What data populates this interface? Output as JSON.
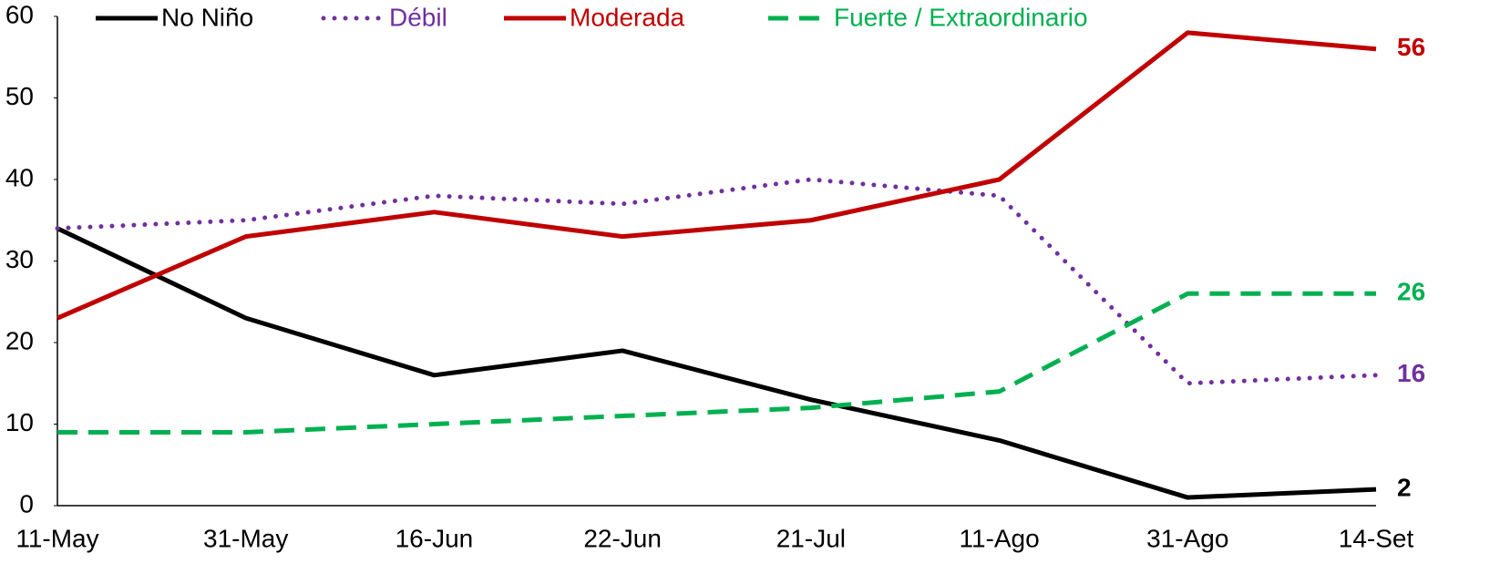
{
  "chart_data": {
    "type": "line",
    "categories": [
      "11-May",
      "31-May",
      "16-Jun",
      "22-Jun",
      "21-Jul",
      "11-Ago",
      "31-Ago",
      "14-Set"
    ],
    "series": [
      {
        "name": "No Niño",
        "color": "#000000",
        "dash": "solid",
        "values": [
          34,
          23,
          16,
          19,
          13,
          8,
          1,
          2
        ]
      },
      {
        "name": "Débil",
        "color": "#7030a0",
        "dash": "dotted",
        "values": [
          34,
          35,
          38,
          37,
          40,
          38,
          15,
          16
        ]
      },
      {
        "name": "Moderada",
        "color": "#c00000",
        "dash": "solid",
        "values": [
          23,
          33,
          36,
          33,
          35,
          40,
          58,
          56
        ]
      },
      {
        "name": "Fuerte / Extraordinario",
        "color": "#00b050",
        "dash": "dashed",
        "values": [
          9,
          9,
          10,
          11,
          12,
          14,
          26,
          26
        ]
      }
    ],
    "ylim": [
      0,
      60
    ],
    "yticks": [
      0,
      10,
      20,
      30,
      40,
      50,
      60
    ],
    "grid": false,
    "legend": "top",
    "label_last": true
  }
}
